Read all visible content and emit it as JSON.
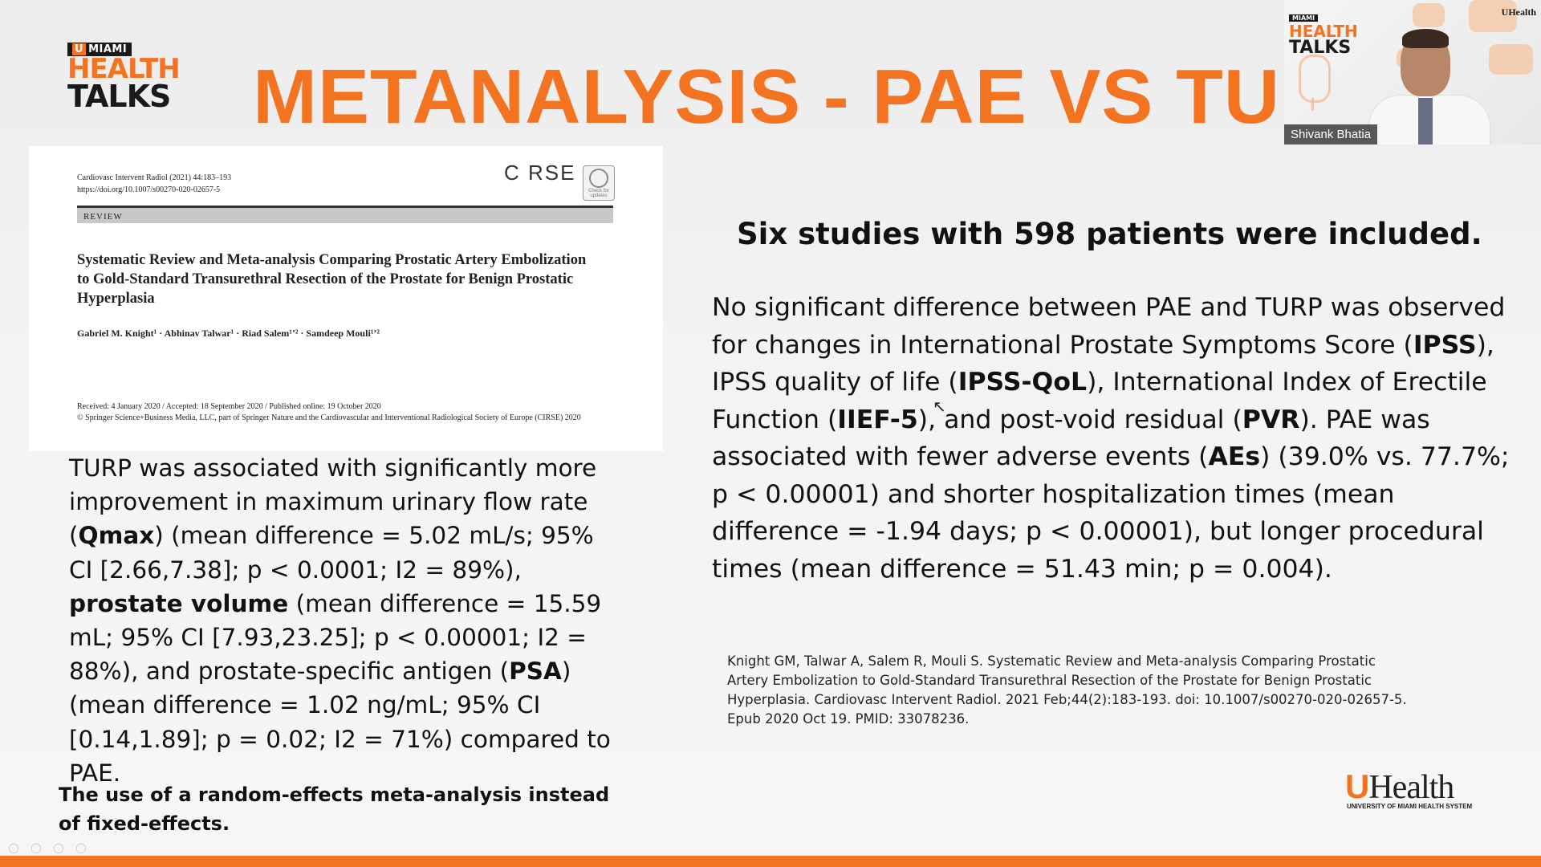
{
  "logo": {
    "badge_u": "U",
    "badge_text": "MIAMI",
    "line1": "HEALTH",
    "line2": "TALKS"
  },
  "slide_title": "METANALYSIS - PAE VS TURP",
  "video": {
    "participant_name": "Shivank Bhatia",
    "logo_badge": "MIAMI",
    "logo_line1": "HEALTH",
    "logo_line2": "TALKS",
    "uhealth_mark": "UHealth"
  },
  "paper": {
    "meta_line1": "Cardiovasc Intervent Radiol (2021) 44:183–193",
    "meta_line2": "https://doi.org/10.1007/s00270-020-02657-5",
    "society_logo": "C RSE",
    "check_label": "Check for updates",
    "section": "REVIEW",
    "title": "Systematic Review and Meta-analysis Comparing Prostatic Artery Embolization to Gold-Standard Transurethral Resection of the Prostate for Benign Prostatic Hyperplasia",
    "authors": "Gabriel M. Knight¹ · Abhinav Talwar¹ · Riad Salem¹ʼ² · Samdeep Mouli¹ʼ²",
    "received": "Received: 4 January 2020 / Accepted: 18 September 2020 / Published online: 19 October 2020",
    "copyright": "© Springer Science+Business Media, LLC, part of Springer Nature and the Cardiovascular and Interventional Radiological Society of Europe (CIRSE) 2020"
  },
  "left": {
    "p1": " TURP was associated with significantly more improvement in maximum urinary flow rate (",
    "qmax": "Qmax",
    "p2": ") (mean difference = 5.02 mL/s; 95% CI [2.66,7.38]; p < 0.0001; I2 = 89%), ",
    "pv": "prostate volume",
    "p3": " (mean difference = 15.59 mL; 95% CI [7.93,23.25]; p < 0.00001; I2 = 88%), and prostate-specific antigen (",
    "psa": "PSA",
    "p4": ") (mean difference = 1.02 ng/mL; 95% CI [0.14,1.89]; p = 0.02; I2 = 71%) compared to PAE.",
    "note": "The use of a random-effects meta-analysis instead of fixed-effects."
  },
  "right": {
    "heading": "Six studies with 598 patients were included.",
    "b1": "No significant difference between PAE and TURP was observed for changes in International Prostate Symptoms Score (",
    "ipss": "IPSS",
    "b2": "), IPSS quality of life (",
    "ipssqol": "IPSS-QoL",
    "b3": "), International Index of Erectile Function (",
    "iief": "IIEF-5",
    "b4": "), and post-void residual (",
    "pvr": "PVR",
    "b5": "). PAE was associated with fewer adverse events (",
    "aes": "AEs",
    "b6": ") (39.0% vs. 77.7%; p < 0.00001) and shorter hospitalization times (mean difference = -1.94 days; p < 0.00001), but longer procedural times (mean difference = 51.43 min; p = 0.004).",
    "citation": "Knight GM, Talwar A, Salem R, Mouli S. Systematic Review and Meta-analysis Comparing Prostatic Artery Embolization to Gold-Standard Transurethral Resection of the Prostate for Benign Prostatic Hyperplasia. Cardiovasc Intervent Radiol. 2021 Feb;44(2):183-193. doi: 10.1007/s00270-020-02657-5. Epub 2020 Oct 19. PMID: 33078236."
  },
  "footer_logo": {
    "brand": "Health",
    "u": "U",
    "subtitle": "UNIVERSITY OF MIAMI HEALTH SYSTEM"
  },
  "colors": {
    "accent": "#f47321",
    "text": "#111111",
    "background": "#f2f2f2"
  }
}
